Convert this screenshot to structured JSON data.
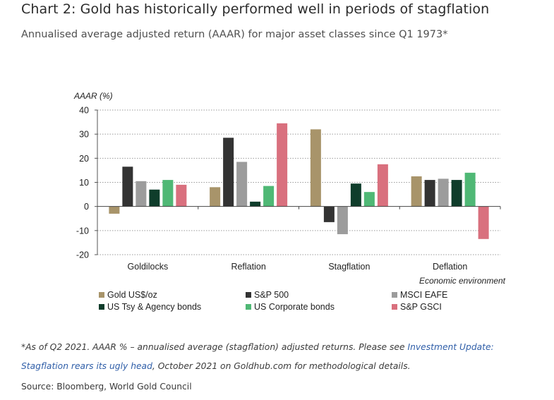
{
  "header": {
    "title": "Chart 2: Gold has historically performed well in periods of stagflation",
    "subtitle": "Annualised average adjusted return (AAAR) for major asset classes since Q1 1973*"
  },
  "chart_data": {
    "type": "bar",
    "ylabel": "AAAR (%)",
    "xlabel": "Economic environment",
    "ylim": [
      -20,
      40
    ],
    "yticks": [
      40,
      30,
      20,
      10,
      0,
      -10,
      -20
    ],
    "grid": "horizontal-dotted",
    "legend_position": "bottom",
    "categories": [
      "Goldilocks",
      "Reflation",
      "Stagflation",
      "Deflation"
    ],
    "series": [
      {
        "name": "Gold US$/oz",
        "color": "#a8946a",
        "values": [
          -3,
          8,
          32,
          12.5
        ]
      },
      {
        "name": "S&P 500",
        "color": "#333333",
        "values": [
          16.5,
          28.5,
          -6.5,
          11
        ]
      },
      {
        "name": "MSCI EAFE",
        "color": "#9c9c9c",
        "values": [
          10.5,
          18.5,
          -11.5,
          11.5
        ]
      },
      {
        "name": "US Tsy & Agency bonds",
        "color": "#0f3d2b",
        "values": [
          7,
          2,
          9.5,
          11
        ]
      },
      {
        "name": "US Corporate bonds",
        "color": "#4fb875",
        "values": [
          11,
          8.5,
          6,
          14
        ]
      },
      {
        "name": "S&P GSCI",
        "color": "#d9707e",
        "values": [
          9,
          34.5,
          17.5,
          -13.5
        ]
      }
    ]
  },
  "footnote": {
    "line1_text": "*As of Q2 2021. AAAR % – annualised average (stagflation) adjusted returns. Please see ",
    "line1_link": "Investment Update:",
    "line2_link": "Stagflation rears its ugly head",
    "line2_text": ", October 2021 on Goldhub.com for methodological details."
  },
  "source": "Source: Bloomberg, World Gold Council"
}
